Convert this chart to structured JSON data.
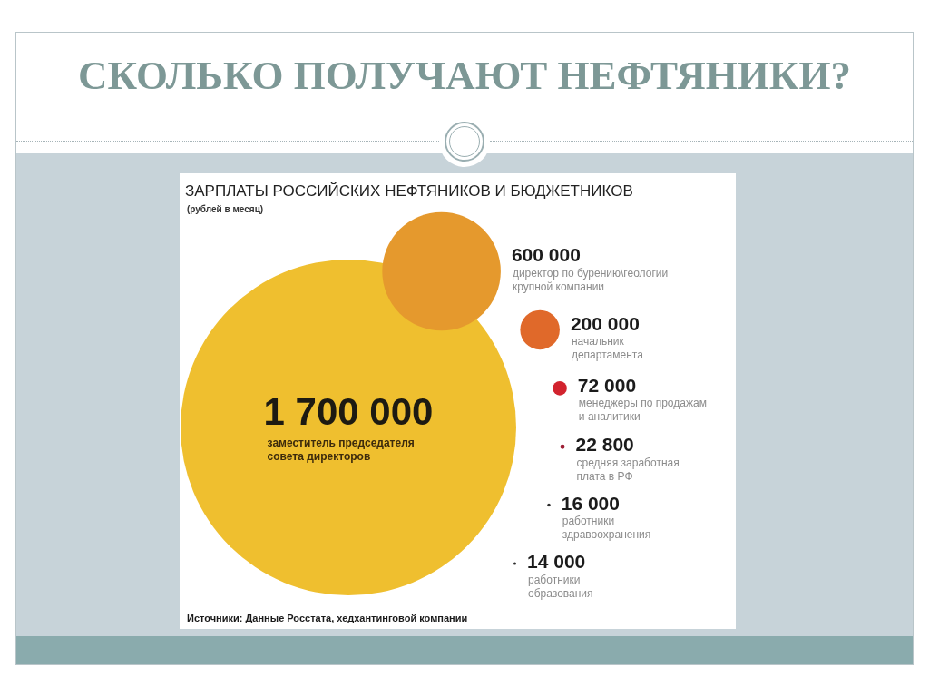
{
  "chart_data": {
    "type": "other",
    "title": "СКОЛЬКО ПОЛУЧАЮТ НЕФТЯНИКИ?",
    "subtitle": "ЗАРПЛАТЫ РОССИЙСКИХ НЕФТЯНИКОВ И БЮДЖЕТНИКОВ",
    "categories": [
      "заместитель председателя\nсовета директоров",
      "директор по бурению\\геологии\nкрупной компании",
      "начальник\nдепартамента",
      "менеджеры по продажам\nи аналитики",
      "средняя заработная\nплата в РФ",
      "работники\nздравоохранения",
      "работники\nобразования"
    ],
    "values": [
      1700000,
      600000,
      200000,
      72000,
      22800,
      16000,
      14000
    ],
    "value_labels": [
      "1 700 000",
      "600 000",
      "200 000",
      "72 000",
      "22 800",
      "16 000",
      "14 000"
    ],
    "colors": [
      "#efbf2f",
      "#e5992d",
      "#e0692a",
      "#d2232e",
      "#9e1f35",
      "#2b2b2b",
      "#2b2b2b"
    ],
    "annotations": [
      "(рублей в месяц)",
      "Источники: Данные Росстата, хедхантинговой компании"
    ]
  }
}
